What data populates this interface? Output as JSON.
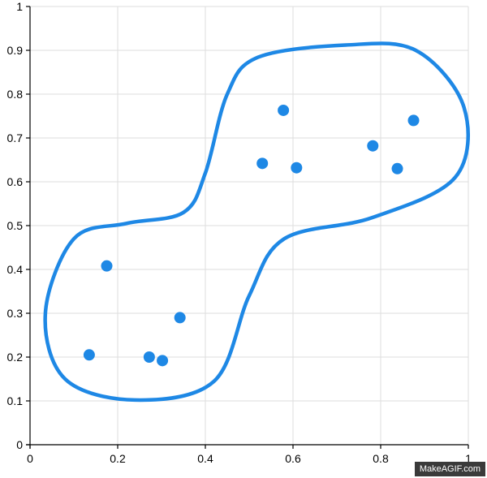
{
  "chart_data": {
    "type": "scatter",
    "xlim": [
      0,
      1
    ],
    "ylim": [
      0,
      1
    ],
    "x_ticks": [
      0,
      0.2,
      0.4,
      0.6,
      0.8,
      1
    ],
    "x_tick_labels": [
      "0",
      "0.2",
      "0.4",
      "0.6",
      "0.8",
      "1"
    ],
    "y_ticks": [
      0,
      0.1,
      0.2,
      0.3,
      0.4,
      0.5,
      0.6,
      0.7,
      0.8,
      0.9,
      1
    ],
    "y_tick_labels": [
      "0",
      "0.1",
      "0.2",
      "0.3",
      "0.4",
      "0.5",
      "0.6",
      "0.7",
      "0.8",
      "0.9",
      "1"
    ],
    "grid": true,
    "series": [
      {
        "color": "#1e88e5",
        "points": [
          {
            "x": 0.135,
            "y": 0.205
          },
          {
            "x": 0.175,
            "y": 0.408
          },
          {
            "x": 0.272,
            "y": 0.2
          },
          {
            "x": 0.302,
            "y": 0.192
          },
          {
            "x": 0.342,
            "y": 0.29
          },
          {
            "x": 0.53,
            "y": 0.642
          },
          {
            "x": 0.578,
            "y": 0.763
          },
          {
            "x": 0.608,
            "y": 0.632
          },
          {
            "x": 0.782,
            "y": 0.682
          },
          {
            "x": 0.838,
            "y": 0.63
          },
          {
            "x": 0.875,
            "y": 0.74
          }
        ]
      }
    ],
    "boundary": {
      "color": "#1e88e5",
      "points": [
        {
          "x": 0.24,
          "y": 0.102
        },
        {
          "x": 0.42,
          "y": 0.145
        },
        {
          "x": 0.5,
          "y": 0.34
        },
        {
          "x": 0.58,
          "y": 0.47
        },
        {
          "x": 0.78,
          "y": 0.518
        },
        {
          "x": 0.97,
          "y": 0.61
        },
        {
          "x": 0.99,
          "y": 0.77
        },
        {
          "x": 0.88,
          "y": 0.9
        },
        {
          "x": 0.72,
          "y": 0.912
        },
        {
          "x": 0.52,
          "y": 0.884
        },
        {
          "x": 0.45,
          "y": 0.8
        },
        {
          "x": 0.4,
          "y": 0.62
        },
        {
          "x": 0.35,
          "y": 0.53
        },
        {
          "x": 0.22,
          "y": 0.505
        },
        {
          "x": 0.1,
          "y": 0.47
        },
        {
          "x": 0.035,
          "y": 0.3
        },
        {
          "x": 0.08,
          "y": 0.15
        }
      ]
    }
  },
  "watermark": "MakeAGIF.com"
}
